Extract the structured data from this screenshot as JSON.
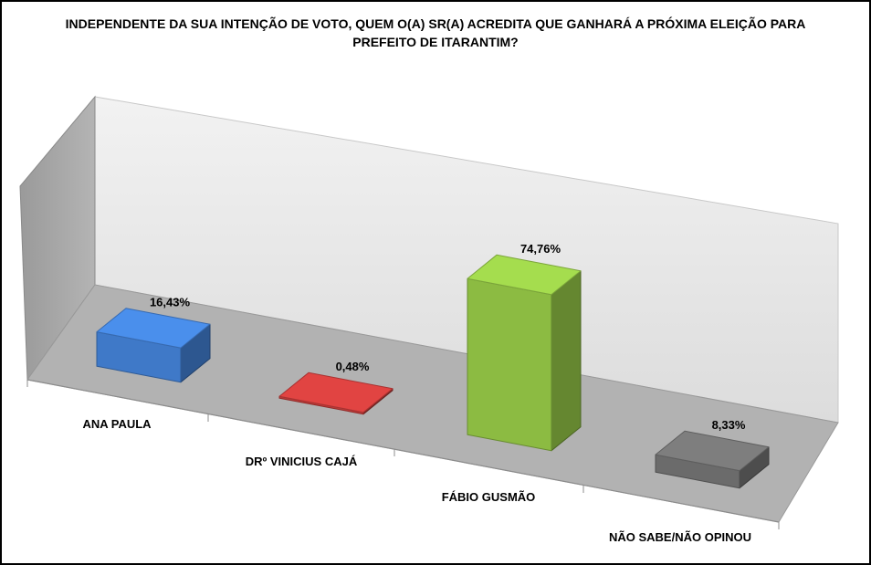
{
  "chart_data": {
    "type": "bar",
    "title": "INDEPENDENTE DA SUA INTENÇÃO DE VOTO, QUEM O(A) SR(A) ACREDITA QUE GANHARÁ A PRÓXIMA ELEIÇÃO PARA PREFEITO DE ITARANTIM?",
    "categories": [
      "ANA PAULA",
      "DRº VINICIUS CAJÁ",
      "FÁBIO GUSMÃO",
      "NÃO SABE/NÃO OPINOU"
    ],
    "values": [
      16.43,
      0.48,
      74.76,
      8.33
    ],
    "data_labels": [
      "16,43%",
      "0,48%",
      "74,76%",
      "8,33%"
    ],
    "colors": [
      "#3f79c8",
      "#bf3a38",
      "#8cbb42",
      "#6b6b6b"
    ],
    "xlabel": "",
    "ylabel": "",
    "ylim": [
      0,
      100
    ],
    "grid": false,
    "legend": "none",
    "style": "3d-bar"
  }
}
